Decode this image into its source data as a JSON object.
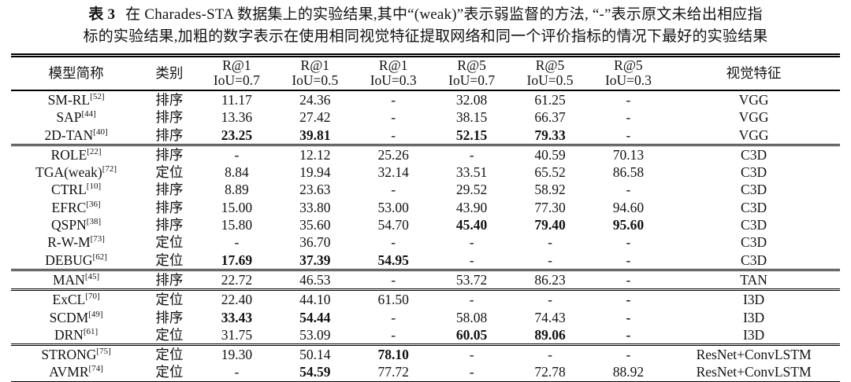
{
  "caption": {
    "label": "表 3",
    "line1": "在 Charades-STA 数据集上的实验结果,其中“(weak)”表示弱监督的方法, “-”表示原文未给出相应指",
    "line2": "标的实验结果,加粗的数字表示在使用相同视觉特征提取网络和同一个评价指标的情况下最好的实验结果"
  },
  "table": {
    "col_headers": {
      "model": "模型简称",
      "category": "类别",
      "feature": "视觉特征",
      "metrics": [
        {
          "top": "R@1",
          "bottom": "IoU=0.7"
        },
        {
          "top": "R@1",
          "bottom": "IoU=0.5"
        },
        {
          "top": "R@1",
          "bottom": "IoU=0.3"
        },
        {
          "top": "R@5",
          "bottom": "IoU=0.7"
        },
        {
          "top": "R@5",
          "bottom": "IoU=0.5"
        },
        {
          "top": "R@5",
          "bottom": "IoU=0.3"
        }
      ]
    },
    "groups": [
      {
        "rows": [
          {
            "model": "SM-RL",
            "ref": "[52]",
            "category": "排序",
            "values": [
              "11.17",
              "24.36",
              "-",
              "32.08",
              "61.25",
              "-"
            ],
            "bold": [],
            "feature": "VGG"
          },
          {
            "model": "SAP",
            "ref": "[44]",
            "category": "排序",
            "values": [
              "13.36",
              "27.42",
              "-",
              "38.15",
              "66.37",
              "-"
            ],
            "bold": [],
            "feature": "VGG"
          },
          {
            "model": "2D-TAN",
            "ref": "[40]",
            "category": "排序",
            "values": [
              "23.25",
              "39.81",
              "-",
              "52.15",
              "79.33",
              "-"
            ],
            "bold": [
              0,
              1,
              3,
              4
            ],
            "feature": "VGG"
          }
        ]
      },
      {
        "rows": [
          {
            "model": "ROLE",
            "ref": "[22]",
            "category": "排序",
            "values": [
              "-",
              "12.12",
              "25.26",
              "-",
              "40.59",
              "70.13"
            ],
            "bold": [],
            "feature": "C3D"
          },
          {
            "model": "TGA(weak)",
            "ref": "[72]",
            "category": "定位",
            "values": [
              "8.84",
              "19.94",
              "32.14",
              "33.51",
              "65.52",
              "86.58"
            ],
            "bold": [],
            "feature": "C3D"
          },
          {
            "model": "CTRL",
            "ref": "[10]",
            "category": "排序",
            "values": [
              "8.89",
              "23.63",
              "-",
              "29.52",
              "58.92",
              "-"
            ],
            "bold": [],
            "feature": "C3D"
          },
          {
            "model": "EFRC",
            "ref": "[36]",
            "category": "排序",
            "values": [
              "15.00",
              "33.80",
              "53.00",
              "43.90",
              "77.30",
              "94.60"
            ],
            "bold": [],
            "feature": "C3D"
          },
          {
            "model": "QSPN",
            "ref": "[38]",
            "category": "排序",
            "values": [
              "15.80",
              "35.60",
              "54.70",
              "45.40",
              "79.40",
              "95.60"
            ],
            "bold": [
              3,
              4,
              5
            ],
            "feature": "C3D"
          },
          {
            "model": "R-W-M",
            "ref": "[73]",
            "category": "定位",
            "values": [
              "-",
              "36.70",
              "-",
              "-",
              "-",
              "-"
            ],
            "bold": [],
            "feature": "C3D"
          },
          {
            "model": "DEBUG",
            "ref": "[62]",
            "category": "定位",
            "values": [
              "17.69",
              "37.39",
              "54.95",
              "-",
              "-",
              "-"
            ],
            "bold": [
              0,
              1,
              2
            ],
            "feature": "C3D"
          }
        ]
      },
      {
        "rows": [
          {
            "model": "MAN",
            "ref": "[45]",
            "category": "排序",
            "values": [
              "22.72",
              "46.53",
              "-",
              "53.72",
              "86.23",
              "-"
            ],
            "bold": [],
            "feature": "TAN"
          }
        ]
      },
      {
        "rows": [
          {
            "model": "ExCL",
            "ref": "[70]",
            "category": "定位",
            "values": [
              "22.40",
              "44.10",
              "61.50",
              "-",
              "-",
              "-"
            ],
            "bold": [
              5
            ],
            "feature": "I3D"
          },
          {
            "model": "SCDM",
            "ref": "[49]",
            "category": "排序",
            "values": [
              "33.43",
              "54.44",
              "-",
              "58.08",
              "74.43",
              "-"
            ],
            "bold": [
              0,
              1,
              5
            ],
            "feature": "I3D"
          },
          {
            "model": "DRN",
            "ref": "[61]",
            "category": "定位",
            "values": [
              "31.75",
              "53.09",
              "-",
              "60.05",
              "89.06",
              "-"
            ],
            "bold": [
              3,
              4,
              5
            ],
            "feature": "I3D"
          }
        ]
      },
      {
        "rows": [
          {
            "model": "STRONG",
            "ref": "[75]",
            "category": "定位",
            "values": [
              "19.30",
              "50.14",
              "78.10",
              "-",
              "-",
              "-"
            ],
            "bold": [
              2
            ],
            "feature": "ResNet+ConvLSTM"
          },
          {
            "model": "AVMR",
            "ref": "[74]",
            "category": "定位",
            "values": [
              "-",
              "54.59",
              "77.72",
              "-",
              "72.78",
              "88.92"
            ],
            "bold": [
              1
            ],
            "feature": "ResNet+ConvLSTM"
          }
        ]
      }
    ]
  }
}
